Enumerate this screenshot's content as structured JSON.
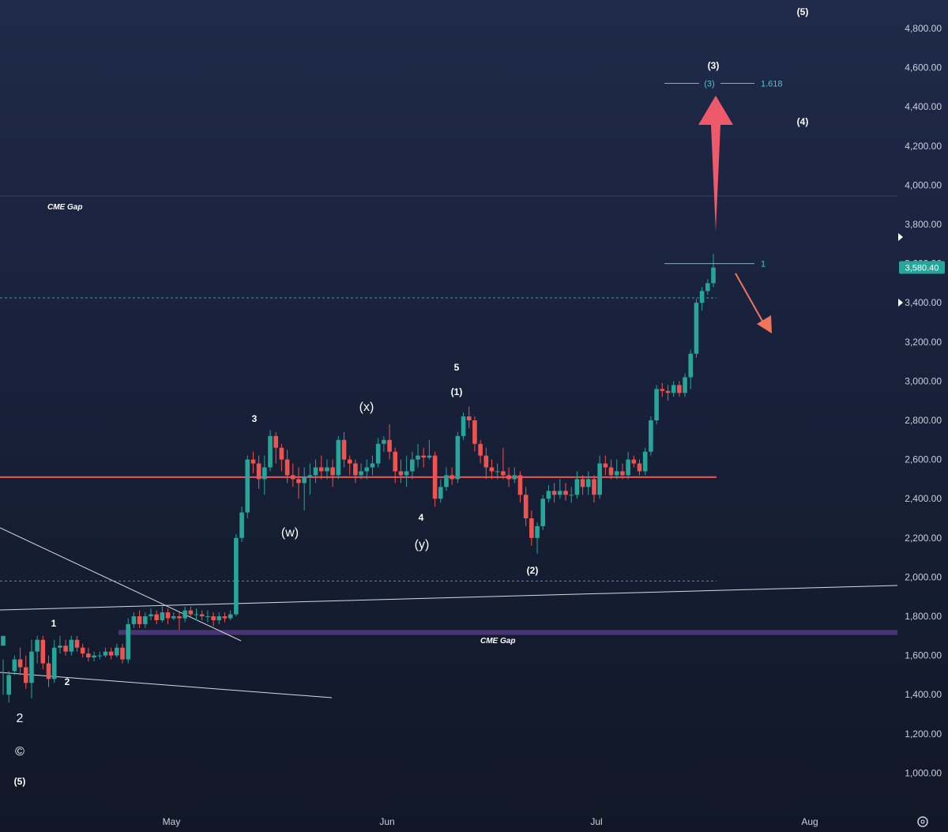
{
  "chart_data": {
    "type": "candlestick",
    "y_axis": {
      "ticks": [
        "1,000.00",
        "1,200.00",
        "1,400.00",
        "1,600.00",
        "1,800.00",
        "2,000.00",
        "2,200.00",
        "2,400.00",
        "2,600.00",
        "2,800.00",
        "3,000.00",
        "3,200.00",
        "3,400.00",
        "3,600.00",
        "3,800.00",
        "4,000.00",
        "4,200.00",
        "4,400.00",
        "4,600.00",
        "4,800.00"
      ],
      "range": [
        950,
        5030
      ]
    },
    "x_axis": {
      "ticks": [
        "May",
        "Jun",
        "Jul",
        "Aug"
      ]
    },
    "current_price": {
      "value": 3580.4,
      "label": "3,580.40",
      "color": "#26a69a"
    },
    "colors": {
      "up": "#26a69a",
      "down": "#ef5350",
      "support": "#ef5350",
      "fib": "#4fc3cf",
      "gap": "#5b3f8f",
      "arrow_up": "#ef5a6a",
      "arrow_down": "#f0765a"
    },
    "candles": [
      [
        1650,
        1700,
        1580,
        1400
      ],
      [
        1400,
        1500,
        1520,
        1360
      ],
      [
        1520,
        1580,
        1600,
        1500
      ],
      [
        1580,
        1540,
        1640,
        1500
      ],
      [
        1540,
        1460,
        1600,
        1430
      ],
      [
        1460,
        1620,
        1680,
        1380
      ],
      [
        1620,
        1680,
        1700,
        1560
      ],
      [
        1680,
        1560,
        1700,
        1530
      ],
      [
        1560,
        1480,
        1600,
        1440
      ],
      [
        1480,
        1640,
        1680,
        1460
      ],
      [
        1640,
        1650,
        1700,
        1610
      ],
      [
        1650,
        1620,
        1680,
        1600
      ],
      [
        1620,
        1680,
        1700,
        1600
      ],
      [
        1680,
        1640,
        1700,
        1620
      ],
      [
        1640,
        1610,
        1660,
        1590
      ],
      [
        1610,
        1590,
        1640,
        1570
      ],
      [
        1590,
        1600,
        1620,
        1570
      ],
      [
        1600,
        1600,
        1620,
        1580
      ],
      [
        1600,
        1620,
        1640,
        1590
      ],
      [
        1620,
        1600,
        1640,
        1580
      ],
      [
        1600,
        1640,
        1660,
        1590
      ],
      [
        1640,
        1580,
        1660,
        1560
      ],
      [
        1580,
        1760,
        1790,
        1560
      ],
      [
        1760,
        1800,
        1820,
        1740
      ],
      [
        1800,
        1760,
        1830,
        1740
      ],
      [
        1760,
        1800,
        1820,
        1740
      ],
      [
        1800,
        1810,
        1840,
        1780
      ],
      [
        1810,
        1780,
        1830,
        1760
      ],
      [
        1780,
        1820,
        1850,
        1770
      ],
      [
        1820,
        1790,
        1840,
        1760
      ],
      [
        1790,
        1800,
        1820,
        1780
      ],
      [
        1800,
        1790,
        1820,
        1730
      ],
      [
        1790,
        1830,
        1850,
        1770
      ],
      [
        1830,
        1810,
        1850,
        1790
      ],
      [
        1810,
        1810,
        1840,
        1780
      ],
      [
        1810,
        1800,
        1830,
        1780
      ],
      [
        1800,
        1800,
        1830,
        1770
      ],
      [
        1800,
        1780,
        1820,
        1750
      ],
      [
        1780,
        1800,
        1820,
        1760
      ],
      [
        1800,
        1790,
        1820,
        1770
      ],
      [
        1790,
        1810,
        1830,
        1780
      ],
      [
        1810,
        2200,
        2220,
        1800
      ],
      [
        2200,
        2330,
        2360,
        2180
      ],
      [
        2330,
        2600,
        2620,
        2300
      ],
      [
        2600,
        2580,
        2640,
        2530
      ],
      [
        2580,
        2500,
        2620,
        2450
      ],
      [
        2500,
        2560,
        2620,
        2420
      ],
      [
        2560,
        2720,
        2750,
        2540
      ],
      [
        2720,
        2660,
        2740,
        2580
      ],
      [
        2660,
        2600,
        2680,
        2540
      ],
      [
        2600,
        2520,
        2650,
        2480
      ],
      [
        2520,
        2500,
        2580,
        2460
      ],
      [
        2500,
        2480,
        2560,
        2400
      ],
      [
        2480,
        2510,
        2560,
        2340
      ],
      [
        2510,
        2520,
        2580,
        2420
      ],
      [
        2520,
        2560,
        2600,
        2480
      ],
      [
        2560,
        2540,
        2620,
        2500
      ],
      [
        2540,
        2560,
        2600,
        2500
      ],
      [
        2560,
        2520,
        2600,
        2460
      ],
      [
        2520,
        2700,
        2720,
        2500
      ],
      [
        2700,
        2600,
        2740,
        2560
      ],
      [
        2600,
        2580,
        2620,
        2520
      ],
      [
        2580,
        2520,
        2600,
        2480
      ],
      [
        2520,
        2540,
        2580,
        2500
      ],
      [
        2540,
        2560,
        2600,
        2500
      ],
      [
        2560,
        2580,
        2620,
        2520
      ],
      [
        2580,
        2680,
        2710,
        2560
      ],
      [
        2680,
        2700,
        2720,
        2640
      ],
      [
        2700,
        2640,
        2780,
        2600
      ],
      [
        2640,
        2540,
        2660,
        2480
      ],
      [
        2540,
        2520,
        2600,
        2480
      ],
      [
        2520,
        2540,
        2620,
        2460
      ],
      [
        2540,
        2600,
        2640,
        2500
      ],
      [
        2600,
        2620,
        2680,
        2560
      ],
      [
        2620,
        2610,
        2660,
        2560
      ],
      [
        2610,
        2620,
        2700,
        2600
      ],
      [
        2620,
        2400,
        2640,
        2360
      ],
      [
        2400,
        2460,
        2500,
        2380
      ],
      [
        2460,
        2520,
        2560,
        2440
      ],
      [
        2520,
        2500,
        2560,
        2470
      ],
      [
        2500,
        2720,
        2740,
        2480
      ],
      [
        2720,
        2820,
        2840,
        2700
      ],
      [
        2820,
        2800,
        2870,
        2760
      ],
      [
        2800,
        2680,
        2820,
        2640
      ],
      [
        2680,
        2620,
        2700,
        2580
      ],
      [
        2620,
        2560,
        2660,
        2500
      ],
      [
        2560,
        2540,
        2600,
        2500
      ],
      [
        2540,
        2540,
        2580,
        2500
      ],
      [
        2540,
        2520,
        2660,
        2500
      ],
      [
        2520,
        2500,
        2560,
        2460
      ],
      [
        2500,
        2520,
        2560,
        2480
      ],
      [
        2520,
        2420,
        2540,
        2380
      ],
      [
        2420,
        2300,
        2460,
        2260
      ],
      [
        2300,
        2200,
        2340,
        2160
      ],
      [
        2200,
        2260,
        2280,
        2120
      ],
      [
        2260,
        2400,
        2420,
        2240
      ],
      [
        2400,
        2440,
        2470,
        2380
      ],
      [
        2440,
        2420,
        2480,
        2380
      ],
      [
        2420,
        2440,
        2500,
        2400
      ],
      [
        2440,
        2420,
        2480,
        2390
      ],
      [
        2420,
        2420,
        2460,
        2380
      ],
      [
        2420,
        2500,
        2540,
        2400
      ],
      [
        2500,
        2460,
        2520,
        2420
      ],
      [
        2460,
        2500,
        2540,
        2420
      ],
      [
        2500,
        2420,
        2520,
        2380
      ],
      [
        2420,
        2580,
        2620,
        2400
      ],
      [
        2580,
        2560,
        2620,
        2520
      ],
      [
        2560,
        2520,
        2600,
        2500
      ],
      [
        2520,
        2540,
        2600,
        2500
      ],
      [
        2540,
        2520,
        2580,
        2500
      ],
      [
        2520,
        2600,
        2640,
        2500
      ],
      [
        2600,
        2580,
        2620,
        2560
      ],
      [
        2580,
        2540,
        2600,
        2520
      ],
      [
        2540,
        2640,
        2660,
        2520
      ],
      [
        2640,
        2800,
        2820,
        2620
      ],
      [
        2800,
        2960,
        2980,
        2780
      ],
      [
        2960,
        2950,
        2990,
        2920
      ],
      [
        2950,
        2940,
        2980,
        2900
      ],
      [
        2940,
        2980,
        3000,
        2920
      ],
      [
        2980,
        2940,
        3000,
        2920
      ],
      [
        2940,
        3020,
        3040,
        2920
      ],
      [
        3020,
        3140,
        3160,
        2960
      ],
      [
        3140,
        3400,
        3420,
        3120
      ],
      [
        3400,
        3460,
        3480,
        3360
      ],
      [
        3460,
        3500,
        3520,
        3440
      ],
      [
        3500,
        3580,
        3650,
        3480
      ]
    ],
    "fib_levels": [
      {
        "label": "1",
        "value": 3600
      },
      {
        "label": "(3)",
        "inline": "(3)",
        "ratio": "1.618",
        "value": 4520
      }
    ],
    "horizontal_lines": [
      {
        "value": 2510,
        "style": "support"
      },
      {
        "value": 3425,
        "style": "dashed"
      },
      {
        "value": 1980,
        "style": "dashed"
      },
      {
        "value": 3945,
        "style": "thin"
      }
    ],
    "cme_gaps": [
      {
        "label": "CME Gap"
      },
      {
        "label": "CME Gap",
        "low": 1705,
        "high": 1730
      }
    ],
    "wave_labels": [
      {
        "text": "(5)",
        "t": 196,
        "v": 5030,
        "style": "sm"
      },
      {
        "text": "(3)",
        "t": 168,
        "v": 4690,
        "style": "sm"
      },
      {
        "text": "(4)",
        "t": 196,
        "v": 4470,
        "style": "sm"
      },
      {
        "text": "3",
        "t": 32,
        "v": 2700,
        "style": "sm"
      },
      {
        "text": "(x)",
        "t": 46,
        "v": 2650,
        "style": "lg"
      },
      {
        "text": "5",
        "t": 60,
        "v": 3060,
        "style": "sm"
      },
      {
        "text": "(1)",
        "t": 60,
        "v": 2920,
        "style": "sm"
      },
      {
        "text": "(w)",
        "t": 36,
        "v": 2180,
        "style": "lg"
      },
      {
        "text": "4",
        "t": 55,
        "v": 2270,
        "style": "sm"
      },
      {
        "text": "(y)",
        "t": 55,
        "v": 2130,
        "style": "lg"
      },
      {
        "text": "(2)",
        "t": 74,
        "v": 2050,
        "style": "sm"
      },
      {
        "text": "1",
        "t": 3,
        "v": 1750,
        "style": "sm"
      },
      {
        "text": "2",
        "t": 5,
        "v": 1410,
        "style": "sm"
      },
      {
        "text": "2",
        "t": -1,
        "v": 1210,
        "style": "xl"
      },
      {
        "text": "©",
        "t": -1,
        "v": 1055,
        "style": "xl"
      },
      {
        "text": "(5)",
        "t": -1,
        "v": 910,
        "style": "sm"
      }
    ],
    "trendlines": [
      {
        "from": [
          -19,
          2400
        ],
        "to": [
          22,
          1680
        ]
      },
      {
        "from": [
          -19,
          1820
        ],
        "to": [
          180,
          1950
        ]
      },
      {
        "from": [
          -19,
          1540
        ],
        "to": [
          28,
          1380
        ]
      }
    ],
    "arrows": [
      {
        "dir": "up",
        "from": [
          168,
          3760
        ],
        "to": [
          168,
          4430
        ]
      },
      {
        "dir": "down",
        "from": [
          170,
          3560
        ],
        "to": [
          175,
          3240
        ]
      }
    ]
  }
}
